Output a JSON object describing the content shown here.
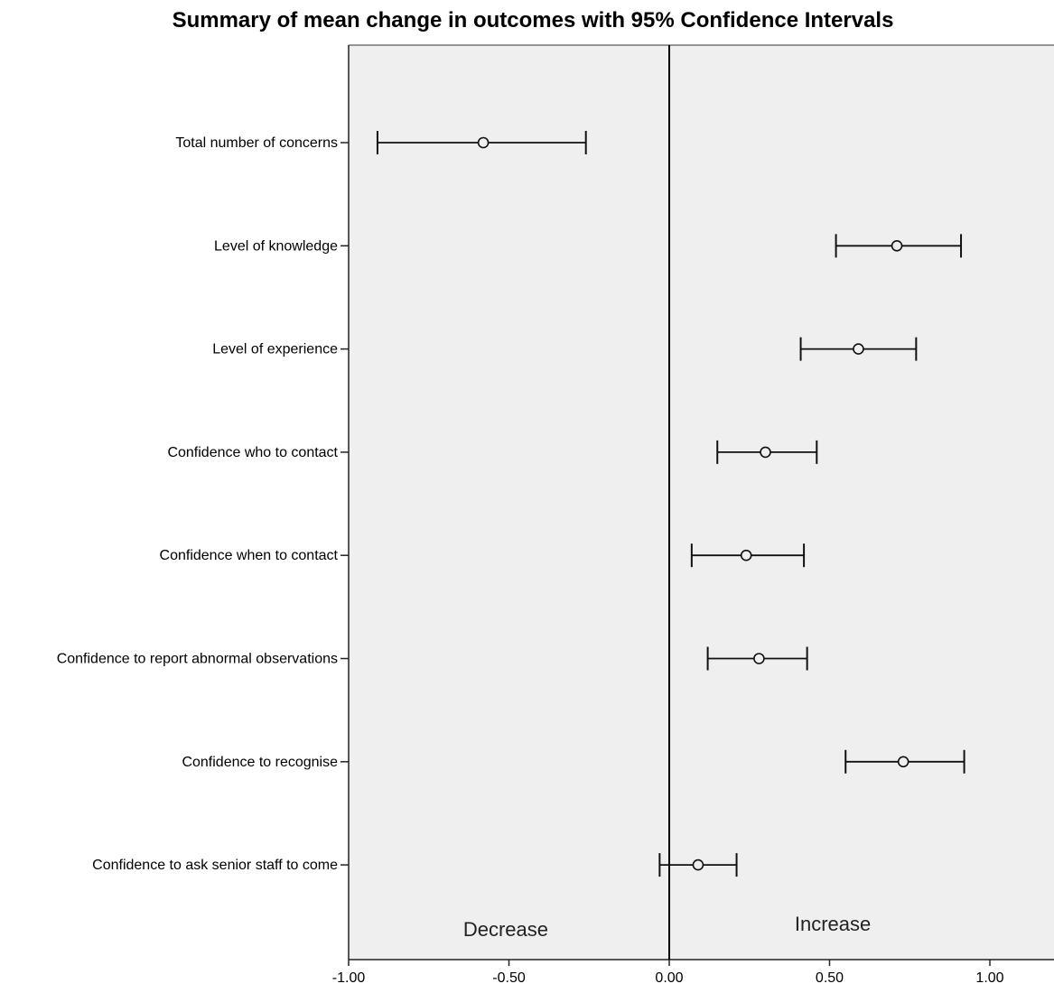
{
  "chart_data": {
    "type": "errorbar",
    "title": "Summary of mean change in outcomes with 95% Confidence Intervals",
    "xlabel": "",
    "ylabel": "",
    "xlim": [
      -1.0,
      1.2
    ],
    "xticks": [
      -1.0,
      -0.5,
      0.0,
      0.5,
      1.0
    ],
    "xtick_labels": [
      "-1.00",
      "-0.50",
      "0.00",
      "0.50",
      "1.00"
    ],
    "reference_line": 0.0,
    "grid": false,
    "plot_background": "#efefef",
    "marker": "open-circle",
    "categories": [
      "Total number of concerns",
      "Level of knowledge",
      "Level of experience",
      "Confidence who to contact",
      "Confidence when to contact",
      "Confidence to report abnormal observations",
      "Confidence to recognise",
      "Confidence to ask senior staff to come"
    ],
    "series": [
      {
        "mean": [
          -0.58,
          0.71,
          0.59,
          0.3,
          0.24,
          0.28,
          0.73,
          0.09
        ],
        "lower": [
          -0.91,
          0.52,
          0.41,
          0.15,
          0.07,
          0.12,
          0.55,
          -0.03
        ],
        "upper": [
          -0.26,
          0.91,
          0.77,
          0.46,
          0.42,
          0.43,
          0.92,
          0.21
        ]
      }
    ],
    "annotations": [
      {
        "text": "Decrease",
        "x": -0.5
      },
      {
        "text": "Increase",
        "x": 0.5
      }
    ]
  }
}
